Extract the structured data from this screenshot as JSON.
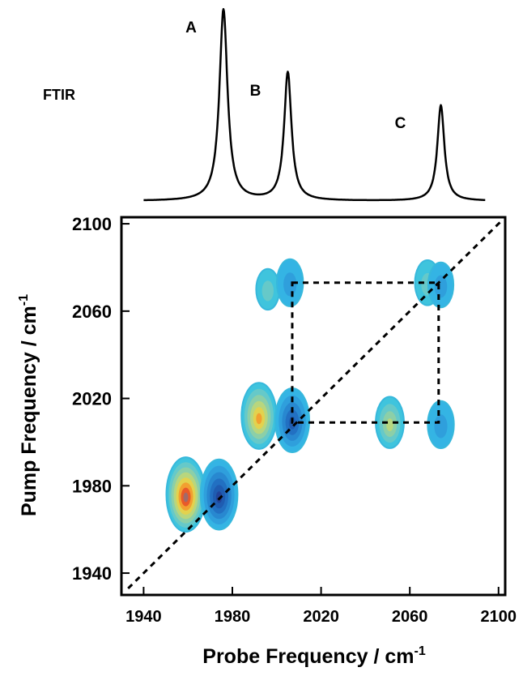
{
  "chart_data": [
    {
      "type": "line",
      "label": "FTIR",
      "peaks": [
        {
          "name": "A",
          "x": 1976,
          "height": 1.0,
          "width": 2.2
        },
        {
          "name": "B",
          "x": 2005,
          "height": 0.67,
          "width": 2.0
        },
        {
          "name": "C",
          "x": 2074,
          "height": 0.5,
          "width": 1.9
        }
      ]
    },
    {
      "type": "contour",
      "xlabel": "Probe Frequency / cm",
      "xlabel_sup": "-1",
      "ylabel": "Pump Frequency / cm",
      "ylabel_sup": "-1",
      "xlim": [
        1930,
        2103
      ],
      "ylim": [
        1930,
        2103
      ],
      "xticks": [
        "1940",
        "1980",
        "2020",
        "2060",
        "2100"
      ],
      "yticks": [
        "1940",
        "1980",
        "2020",
        "2060",
        "2100"
      ],
      "diagonal": true,
      "crosspeak_box": {
        "x": [
          2007,
          2073
        ],
        "y": [
          2009,
          2073
        ]
      },
      "peaks": [
        {
          "x": 1959,
          "y": 1976,
          "sign": "positive",
          "intensity": 1.0
        },
        {
          "x": 1974,
          "y": 1976,
          "sign": "negative",
          "intensity": 0.9
        },
        {
          "x": 1992,
          "y": 2012,
          "sign": "positive",
          "intensity": 0.8
        },
        {
          "x": 2007,
          "y": 2010,
          "sign": "negative",
          "intensity": 0.75
        },
        {
          "x": 2051,
          "y": 2009,
          "sign": "positive",
          "intensity": 0.45
        },
        {
          "x": 2074,
          "y": 2008,
          "sign": "negative",
          "intensity": 0.35
        },
        {
          "x": 1996,
          "y": 2070,
          "sign": "positive",
          "intensity": 0.2
        },
        {
          "x": 2006,
          "y": 2073,
          "sign": "negative",
          "intensity": 0.35
        },
        {
          "x": 2068,
          "y": 2073,
          "sign": "positive",
          "intensity": 0.3
        },
        {
          "x": 2074,
          "y": 2072,
          "sign": "negative",
          "intensity": 0.3
        }
      ]
    }
  ]
}
